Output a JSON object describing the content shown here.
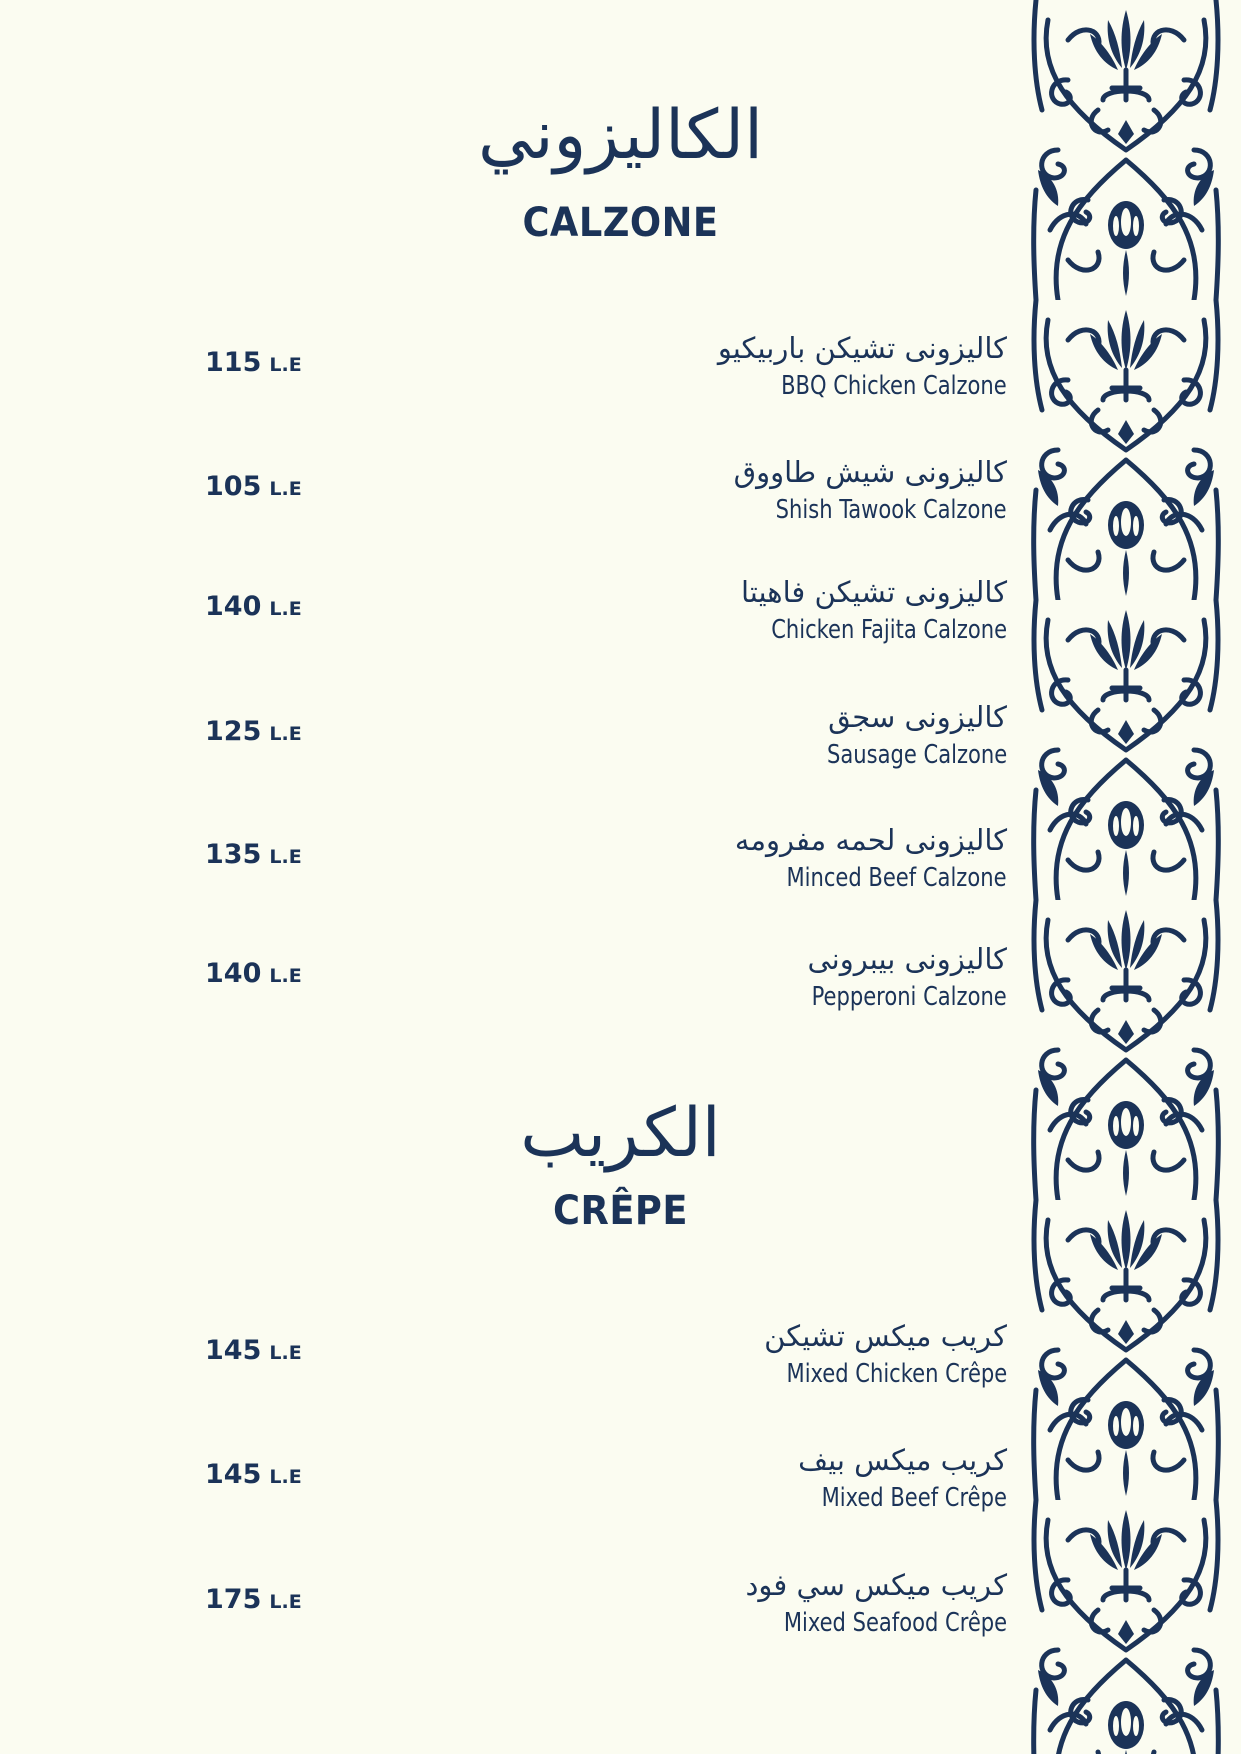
{
  "colors": {
    "background": "#fbfcf1",
    "ink": "#1b3358"
  },
  "currency": "L.E",
  "sections": [
    {
      "title_ar": "الكاليزوني",
      "title_en": "CALZONE",
      "items": [
        {
          "name_ar": "كاليزونى تشيكن باربيكيو",
          "name_en": "BBQ Chicken Calzone",
          "price": "115"
        },
        {
          "name_ar": "كاليزونى شيش طاووق",
          "name_en": "Shish Tawook Calzone",
          "price": "105"
        },
        {
          "name_ar": "كاليزونى تشيكن فاهيتا",
          "name_en": "Chicken Fajita Calzone",
          "price": "140"
        },
        {
          "name_ar": "كاليزونى سجق",
          "name_en": "Sausage Calzone",
          "price": "125"
        },
        {
          "name_ar": "كاليزونى لحمه مفرومه",
          "name_en": "Minced Beef Calzone",
          "price": "135"
        },
        {
          "name_ar": "كاليزونى بيبرونى",
          "name_en": "Pepperoni Calzone",
          "price": "140"
        }
      ]
    },
    {
      "title_ar": "الكريب",
      "title_en": "CRÊPE",
      "items": [
        {
          "name_ar": "كريب ميكس تشيكن",
          "name_en": "Mixed Chicken Crêpe",
          "price": "145"
        },
        {
          "name_ar": "كريب ميكس بيف",
          "name_en": "Mixed Beef Crêpe",
          "price": "145"
        },
        {
          "name_ar": "كريب ميكس سي فود",
          "name_en": "Mixed Seafood Crêpe",
          "price": "175"
        }
      ]
    }
  ]
}
